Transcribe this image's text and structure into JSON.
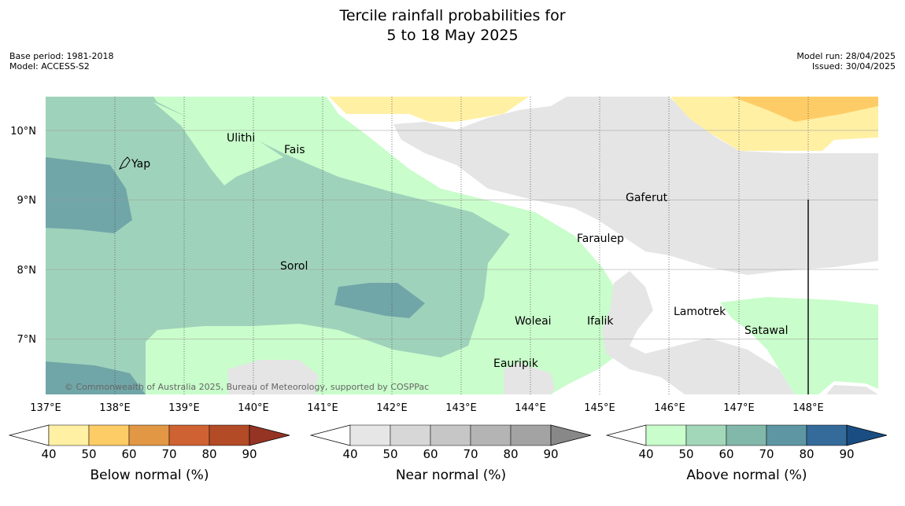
{
  "title_line1": "Tercile rainfall probabilities for",
  "title_line2": "5 to 18 May 2025",
  "meta": {
    "base_period": "Base period: 1981-2018",
    "model": "Model: ACCESS-S2",
    "model_run": "Model run: 28/04/2025",
    "issued": "Issued: 30/04/2025"
  },
  "copyright": "© Commonwealth of Australia 2025, Bureau of Meteorology, supported by COSPPac",
  "lon_labels": [
    "137°E",
    "138°E",
    "139°E",
    "140°E",
    "141°E",
    "142°E",
    "143°E",
    "144°E",
    "145°E",
    "146°E",
    "147°E",
    "148°E"
  ],
  "lat_labels": [
    "10°N",
    "9°N",
    "8°N",
    "7°N"
  ],
  "places": [
    "Yap",
    "Ulithi",
    "Fais",
    "Gaferut",
    "Faraulep",
    "Sorol",
    "Woleai",
    "Ifalik",
    "Lamotrek",
    "Satawal",
    "Eauripik"
  ],
  "colorbars": [
    {
      "label": "Below normal (%)",
      "ticks": [
        "40",
        "50",
        "60",
        "70",
        "80",
        "90"
      ],
      "colors": [
        "#fff0a4",
        "#fecc66",
        "#e29745",
        "#cf6232",
        "#b24b26",
        "#963424"
      ]
    },
    {
      "label": "Near normal (%)",
      "ticks": [
        "40",
        "50",
        "60",
        "70",
        "80",
        "90"
      ],
      "colors": [
        "#e6e6e6",
        "#d7d7d7",
        "#c6c6c6",
        "#b4b4b4",
        "#a3a3a3",
        "#888888"
      ]
    },
    {
      "label": "Above normal (%)",
      "ticks": [
        "40",
        "50",
        "60",
        "70",
        "80",
        "90"
      ],
      "colors": [
        "#c9fdcb",
        "#a3d7b9",
        "#82b8aa",
        "#5e97a3",
        "#356b9a",
        "#1a4e82"
      ]
    }
  ]
}
